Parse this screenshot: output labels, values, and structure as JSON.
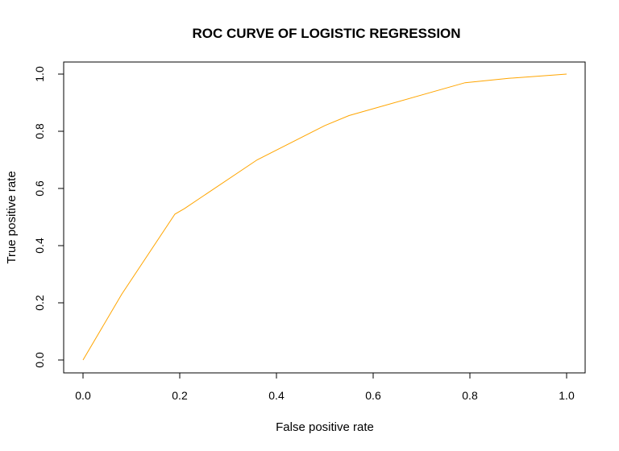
{
  "chart_data": {
    "type": "line",
    "title": "ROC CURVE OF LOGISTIC REGRESSION",
    "xlabel": "False positive rate",
    "ylabel": "True positive rate",
    "xlim": [
      0,
      1
    ],
    "ylim": [
      0,
      1
    ],
    "xticks": [
      0.0,
      0.2,
      0.4,
      0.6,
      0.8,
      1.0
    ],
    "yticks": [
      0.0,
      0.2,
      0.4,
      0.6,
      0.8,
      1.0
    ],
    "xtick_labels": [
      "0.0",
      "0.2",
      "0.4",
      "0.6",
      "0.8",
      "1.0"
    ],
    "ytick_labels": [
      "0.0",
      "0.2",
      "0.4",
      "0.6",
      "0.8",
      "1.0"
    ],
    "grid": false,
    "series": [
      {
        "color": "#FFA500",
        "x": [
          0.0,
          0.08,
          0.19,
          0.21,
          0.36,
          0.5,
          0.55,
          0.79,
          0.88,
          1.0
        ],
        "y": [
          0.0,
          0.23,
          0.51,
          0.53,
          0.7,
          0.82,
          0.855,
          0.97,
          0.985,
          1.0
        ]
      }
    ]
  }
}
